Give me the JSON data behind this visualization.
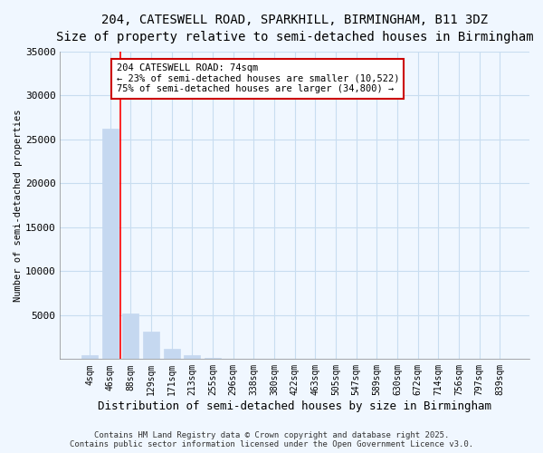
{
  "title_line1": "204, CATESWELL ROAD, SPARKHILL, BIRMINGHAM, B11 3DZ",
  "title_line2": "Size of property relative to semi-detached houses in Birmingham",
  "xlabel": "Distribution of semi-detached houses by size in Birmingham",
  "ylabel": "Number of semi-detached properties",
  "categories": [
    "4sqm",
    "46sqm",
    "88sqm",
    "129sqm",
    "171sqm",
    "213sqm",
    "255sqm",
    "296sqm",
    "338sqm",
    "380sqm",
    "422sqm",
    "463sqm",
    "505sqm",
    "547sqm",
    "589sqm",
    "630sqm",
    "672sqm",
    "714sqm",
    "756sqm",
    "797sqm",
    "839sqm"
  ],
  "values": [
    400,
    26200,
    5200,
    3100,
    1200,
    400,
    150,
    0,
    0,
    0,
    0,
    0,
    0,
    0,
    0,
    0,
    0,
    0,
    0,
    0,
    0
  ],
  "bar_color": "#c5d8f0",
  "bar_edge_color": "#c5d8f0",
  "grid_color": "#c8ddf0",
  "property_line_x": 1.5,
  "annotation_text": "204 CATESWELL ROAD: 74sqm\n← 23% of semi-detached houses are smaller (10,522)\n75% of semi-detached houses are larger (34,800) →",
  "annotation_box_color": "#ffffff",
  "annotation_border_color": "#cc0000",
  "ylim": [
    0,
    35000
  ],
  "yticks": [
    0,
    5000,
    10000,
    15000,
    20000,
    25000,
    30000,
    35000
  ],
  "footer_line1": "Contains HM Land Registry data © Crown copyright and database right 2025.",
  "footer_line2": "Contains public sector information licensed under the Open Government Licence v3.0.",
  "bg_color": "#f0f7ff",
  "title_fontsize": 10,
  "subtitle_fontsize": 9,
  "xlabel_fontsize": 9,
  "ylabel_fontsize": 7.5
}
